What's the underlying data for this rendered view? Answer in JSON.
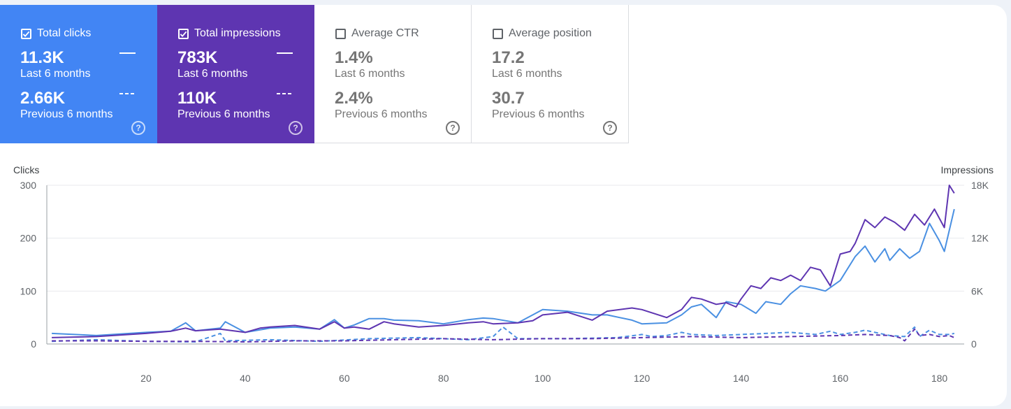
{
  "cards": [
    {
      "label": "Total clicks",
      "checked": true,
      "color": "#4285f4",
      "value": "11.3K",
      "value_label": "Last 6 months",
      "prev_value": "2.66K",
      "prev_label": "Previous 6 months"
    },
    {
      "label": "Total impressions",
      "checked": true,
      "color": "#5e35b1",
      "value": "783K",
      "value_label": "Last 6 months",
      "prev_value": "110K",
      "prev_label": "Previous 6 months"
    },
    {
      "label": "Average CTR",
      "checked": false,
      "color": "#ffffff",
      "value": "1.4%",
      "value_label": "Last 6 months",
      "prev_value": "2.4%",
      "prev_label": "Previous 6 months"
    },
    {
      "label": "Average position",
      "checked": false,
      "color": "#ffffff",
      "value": "17.2",
      "value_label": "Last 6 months",
      "prev_value": "30.7",
      "prev_label": "Previous 6 months"
    }
  ],
  "help_icon": "help-circle-icon",
  "chart_data": {
    "type": "line",
    "ylabel_left": "Clicks",
    "ylabel_right": "Impressions",
    "left_ticks": [
      "300",
      "200",
      "100",
      "0"
    ],
    "right_ticks": [
      "18K",
      "12K",
      "6K",
      "0"
    ],
    "xticks": [
      "20",
      "40",
      "60",
      "80",
      "100",
      "120",
      "140",
      "160",
      "180"
    ],
    "xlim": [
      0,
      185
    ],
    "ylim_left": [
      0,
      300
    ],
    "ylim_right": [
      0,
      18000
    ],
    "grid": true,
    "colors": {
      "clicks": "#4a90e2",
      "impressions": "#5e35b1"
    },
    "series": [
      {
        "name": "Total clicks",
        "axis": "left",
        "style": "solid",
        "points": [
          [
            1,
            20
          ],
          [
            10,
            16
          ],
          [
            20,
            22
          ],
          [
            25,
            24
          ],
          [
            28,
            40
          ],
          [
            30,
            25
          ],
          [
            35,
            30
          ],
          [
            36,
            42
          ],
          [
            40,
            22
          ],
          [
            45,
            30
          ],
          [
            50,
            32
          ],
          [
            55,
            28
          ],
          [
            58,
            46
          ],
          [
            60,
            30
          ],
          [
            62,
            36
          ],
          [
            65,
            48
          ],
          [
            68,
            48
          ],
          [
            70,
            45
          ],
          [
            75,
            44
          ],
          [
            80,
            38
          ],
          [
            85,
            46
          ],
          [
            88,
            49
          ],
          [
            90,
            48
          ],
          [
            95,
            40
          ],
          [
            98,
            55
          ],
          [
            100,
            65
          ],
          [
            105,
            62
          ],
          [
            110,
            55
          ],
          [
            113,
            55
          ],
          [
            118,
            45
          ],
          [
            120,
            38
          ],
          [
            125,
            40
          ],
          [
            128,
            55
          ],
          [
            130,
            70
          ],
          [
            132,
            75
          ],
          [
            135,
            50
          ],
          [
            137,
            80
          ],
          [
            140,
            75
          ],
          [
            143,
            58
          ],
          [
            145,
            80
          ],
          [
            148,
            75
          ],
          [
            150,
            95
          ],
          [
            152,
            110
          ],
          [
            155,
            105
          ],
          [
            157,
            100
          ],
          [
            160,
            120
          ],
          [
            163,
            165
          ],
          [
            165,
            185
          ],
          [
            167,
            155
          ],
          [
            169,
            180
          ],
          [
            170,
            158
          ],
          [
            172,
            180
          ],
          [
            174,
            162
          ],
          [
            176,
            175
          ],
          [
            178,
            228
          ],
          [
            180,
            195
          ],
          [
            181,
            175
          ],
          [
            183,
            255
          ]
        ]
      },
      {
        "name": "Total impressions",
        "axis": "left",
        "style": "solid",
        "points": [
          [
            1,
            12
          ],
          [
            10,
            14
          ],
          [
            20,
            20
          ],
          [
            25,
            24
          ],
          [
            28,
            30
          ],
          [
            30,
            25
          ],
          [
            35,
            28
          ],
          [
            40,
            22
          ],
          [
            43,
            30
          ],
          [
            45,
            32
          ],
          [
            50,
            35
          ],
          [
            55,
            28
          ],
          [
            58,
            42
          ],
          [
            60,
            30
          ],
          [
            62,
            32
          ],
          [
            65,
            28
          ],
          [
            68,
            42
          ],
          [
            70,
            38
          ],
          [
            75,
            32
          ],
          [
            80,
            35
          ],
          [
            85,
            40
          ],
          [
            88,
            42
          ],
          [
            90,
            38
          ],
          [
            95,
            40
          ],
          [
            98,
            44
          ],
          [
            100,
            55
          ],
          [
            105,
            60
          ],
          [
            110,
            45
          ],
          [
            113,
            62
          ],
          [
            118,
            68
          ],
          [
            120,
            65
          ],
          [
            125,
            50
          ],
          [
            128,
            65
          ],
          [
            130,
            88
          ],
          [
            132,
            85
          ],
          [
            135,
            75
          ],
          [
            137,
            78
          ],
          [
            139,
            70
          ],
          [
            140,
            85
          ],
          [
            142,
            110
          ],
          [
            144,
            105
          ],
          [
            146,
            125
          ],
          [
            148,
            120
          ],
          [
            150,
            130
          ],
          [
            152,
            120
          ],
          [
            154,
            145
          ],
          [
            156,
            140
          ],
          [
            158,
            110
          ],
          [
            160,
            170
          ],
          [
            162,
            175
          ],
          [
            163,
            190
          ],
          [
            165,
            235
          ],
          [
            167,
            220
          ],
          [
            169,
            240
          ],
          [
            171,
            230
          ],
          [
            173,
            215
          ],
          [
            175,
            245
          ],
          [
            177,
            225
          ],
          [
            179,
            255
          ],
          [
            181,
            220
          ],
          [
            182,
            300
          ],
          [
            183,
            285
          ]
        ]
      },
      {
        "name": "Clicks (previous)",
        "axis": "left",
        "style": "dashed",
        "points": [
          [
            1,
            5
          ],
          [
            10,
            8
          ],
          [
            20,
            5
          ],
          [
            30,
            4
          ],
          [
            35,
            20
          ],
          [
            36,
            6
          ],
          [
            45,
            8
          ],
          [
            55,
            5
          ],
          [
            65,
            10
          ],
          [
            75,
            12
          ],
          [
            85,
            8
          ],
          [
            90,
            14
          ],
          [
            92,
            32
          ],
          [
            95,
            10
          ],
          [
            105,
            10
          ],
          [
            115,
            12
          ],
          [
            120,
            18
          ],
          [
            122,
            14
          ],
          [
            125,
            16
          ],
          [
            128,
            22
          ],
          [
            130,
            18
          ],
          [
            135,
            16
          ],
          [
            140,
            18
          ],
          [
            145,
            20
          ],
          [
            150,
            22
          ],
          [
            155,
            18
          ],
          [
            158,
            24
          ],
          [
            160,
            18
          ],
          [
            163,
            22
          ],
          [
            165,
            26
          ],
          [
            168,
            20
          ],
          [
            170,
            16
          ],
          [
            173,
            14
          ],
          [
            175,
            32
          ],
          [
            176,
            14
          ],
          [
            178,
            26
          ],
          [
            180,
            18
          ],
          [
            182,
            18
          ],
          [
            183,
            20
          ]
        ]
      },
      {
        "name": "Impressions (previous)",
        "axis": "left",
        "style": "dashed",
        "points": [
          [
            1,
            6
          ],
          [
            10,
            6
          ],
          [
            20,
            5
          ],
          [
            30,
            5
          ],
          [
            40,
            4
          ],
          [
            50,
            6
          ],
          [
            60,
            6
          ],
          [
            70,
            8
          ],
          [
            80,
            10
          ],
          [
            90,
            8
          ],
          [
            100,
            10
          ],
          [
            110,
            10
          ],
          [
            120,
            12
          ],
          [
            130,
            14
          ],
          [
            140,
            12
          ],
          [
            150,
            14
          ],
          [
            160,
            16
          ],
          [
            165,
            18
          ],
          [
            170,
            16
          ],
          [
            172,
            12
          ],
          [
            173,
            6
          ],
          [
            175,
            28
          ],
          [
            176,
            16
          ],
          [
            178,
            18
          ],
          [
            180,
            14
          ],
          [
            182,
            16
          ],
          [
            183,
            12
          ]
        ]
      }
    ]
  }
}
